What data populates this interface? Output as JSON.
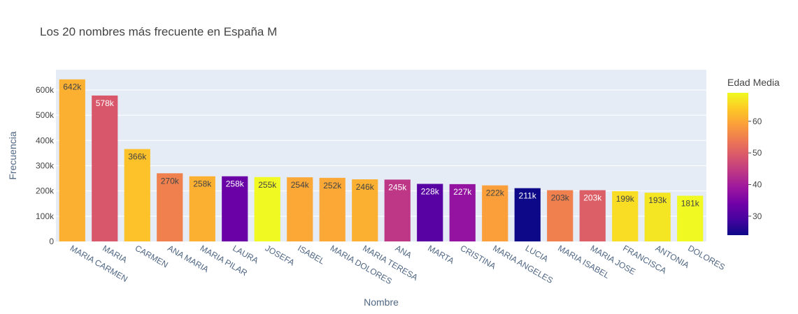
{
  "chart_data": {
    "type": "bar",
    "title": "Los 20 nombres más frecuente en España M",
    "xlabel": "Nombre",
    "ylabel": "Frecuencia",
    "ylim": [
      0,
      680000
    ],
    "yticks": [
      0,
      100000,
      200000,
      300000,
      400000,
      500000,
      600000
    ],
    "ytick_labels": [
      "0",
      "100k",
      "200k",
      "300k",
      "400k",
      "500k",
      "600k"
    ],
    "categories": [
      "MARIA CARMEN",
      "MARIA",
      "CARMEN",
      "ANA MARIA",
      "MARIA PILAR",
      "LAURA",
      "JOSEFA",
      "ISABEL",
      "MARIA DOLORES",
      "MARIA TERESA",
      "ANA",
      "MARTA",
      "CRISTINA",
      "MARIA ANGELES",
      "LUCIA",
      "MARIA ISABEL",
      "MARIA JOSE",
      "FRANCISCA",
      "ANTONIA",
      "DOLORES"
    ],
    "values": [
      642000,
      578000,
      366000,
      270000,
      258000,
      258000,
      255000,
      254000,
      252000,
      246000,
      245000,
      228000,
      227000,
      222000,
      211000,
      203000,
      203000,
      199000,
      193000,
      181000
    ],
    "value_labels": [
      "642k",
      "578k",
      "366k",
      "270k",
      "258k",
      "258k",
      "255k",
      "254k",
      "252k",
      "246k",
      "245k",
      "228k",
      "227k",
      "222k",
      "211k",
      "203k",
      "203k",
      "199k",
      "193k",
      "181k"
    ],
    "color_values": [
      61,
      49,
      63,
      55,
      61,
      33,
      69,
      60,
      60,
      61,
      44,
      31,
      38,
      59,
      24,
      55,
      50,
      66,
      67,
      69
    ],
    "colorbar": {
      "title": "Edad Media",
      "range": [
        24,
        69
      ],
      "ticks": [
        30,
        40,
        50,
        60
      ],
      "colorscale": [
        "#0d0887",
        "#46039f",
        "#7201a8",
        "#9c179e",
        "#bd3786",
        "#d8576b",
        "#ed7953",
        "#fb9f3a",
        "#fdca26",
        "#f0f921"
      ]
    },
    "grid": true
  }
}
